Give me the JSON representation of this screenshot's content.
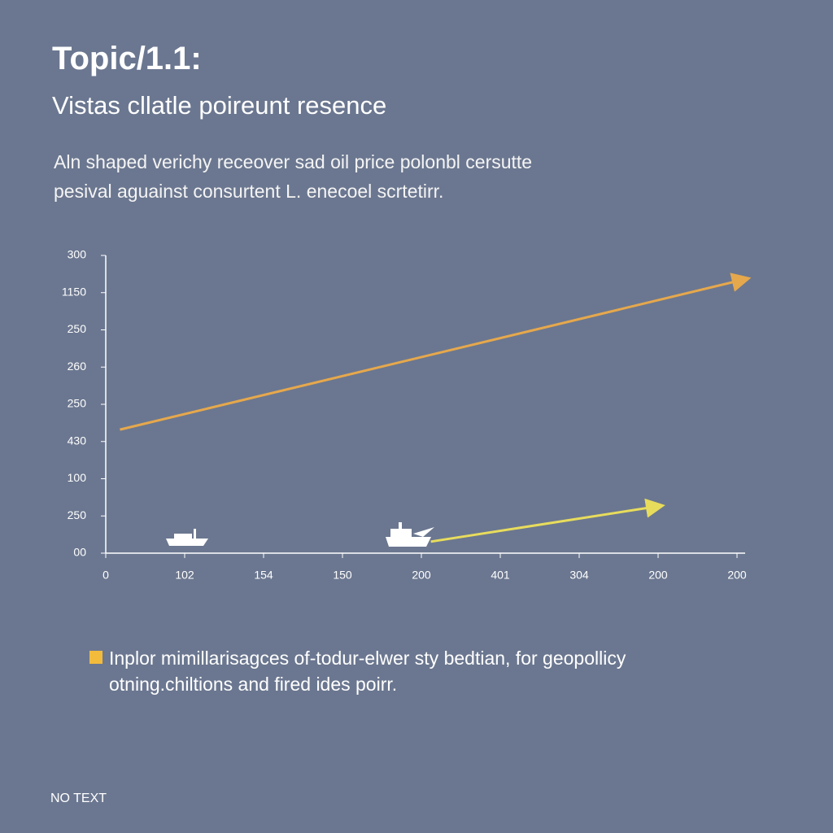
{
  "header": {
    "title": "Topic/1.1:",
    "subtitle": "Vistas cllatle poireunt  resence",
    "description": [
      "Aln shaped verichy receover sad oil price polonbl cersutte",
      "pesival aguainst consurtent L. enecoel scrtetirr."
    ]
  },
  "chart_data": {
    "type": "line",
    "xlim": [
      0,
      8
    ],
    "xticks": [
      {
        "value": 0,
        "label": "0"
      },
      {
        "value": 1,
        "label": "102"
      },
      {
        "value": 2,
        "label": "154"
      },
      {
        "value": 3,
        "label": "150"
      },
      {
        "value": 4,
        "label": "200"
      },
      {
        "value": 5,
        "label": "401"
      },
      {
        "value": 6,
        "label": "304"
      },
      {
        "value": 7,
        "label": "200"
      },
      {
        "value": 8,
        "label": "200"
      }
    ],
    "ylim": [
      0,
      8
    ],
    "yticks": [
      {
        "value": 0,
        "label": "00"
      },
      {
        "value": 1,
        "label": "250"
      },
      {
        "value": 2,
        "label": "100"
      },
      {
        "value": 3,
        "label": "430"
      },
      {
        "value": 4,
        "label": "250"
      },
      {
        "value": 5,
        "label": "260"
      },
      {
        "value": 6,
        "label": "250"
      },
      {
        "value": 7,
        "label": "1150"
      },
      {
        "value": 8,
        "label": "300"
      }
    ],
    "series": [
      {
        "color": "#e6a84c",
        "x": [
          0.18,
          8.12
        ],
        "values": [
          3.32,
          7.37
        ]
      },
      {
        "color": "#e8dc5c",
        "x": [
          4.12,
          7.03
        ],
        "values": [
          0.31,
          1.27
        ]
      }
    ]
  },
  "legend": {
    "color": "#f2bb3c",
    "lines": [
      "Inplor mimillarisagces of-todur-elwer sty bedtian, for geopollicy",
      "otning.chiltions and fired ides poirr."
    ]
  },
  "footer": "NO TEXT"
}
